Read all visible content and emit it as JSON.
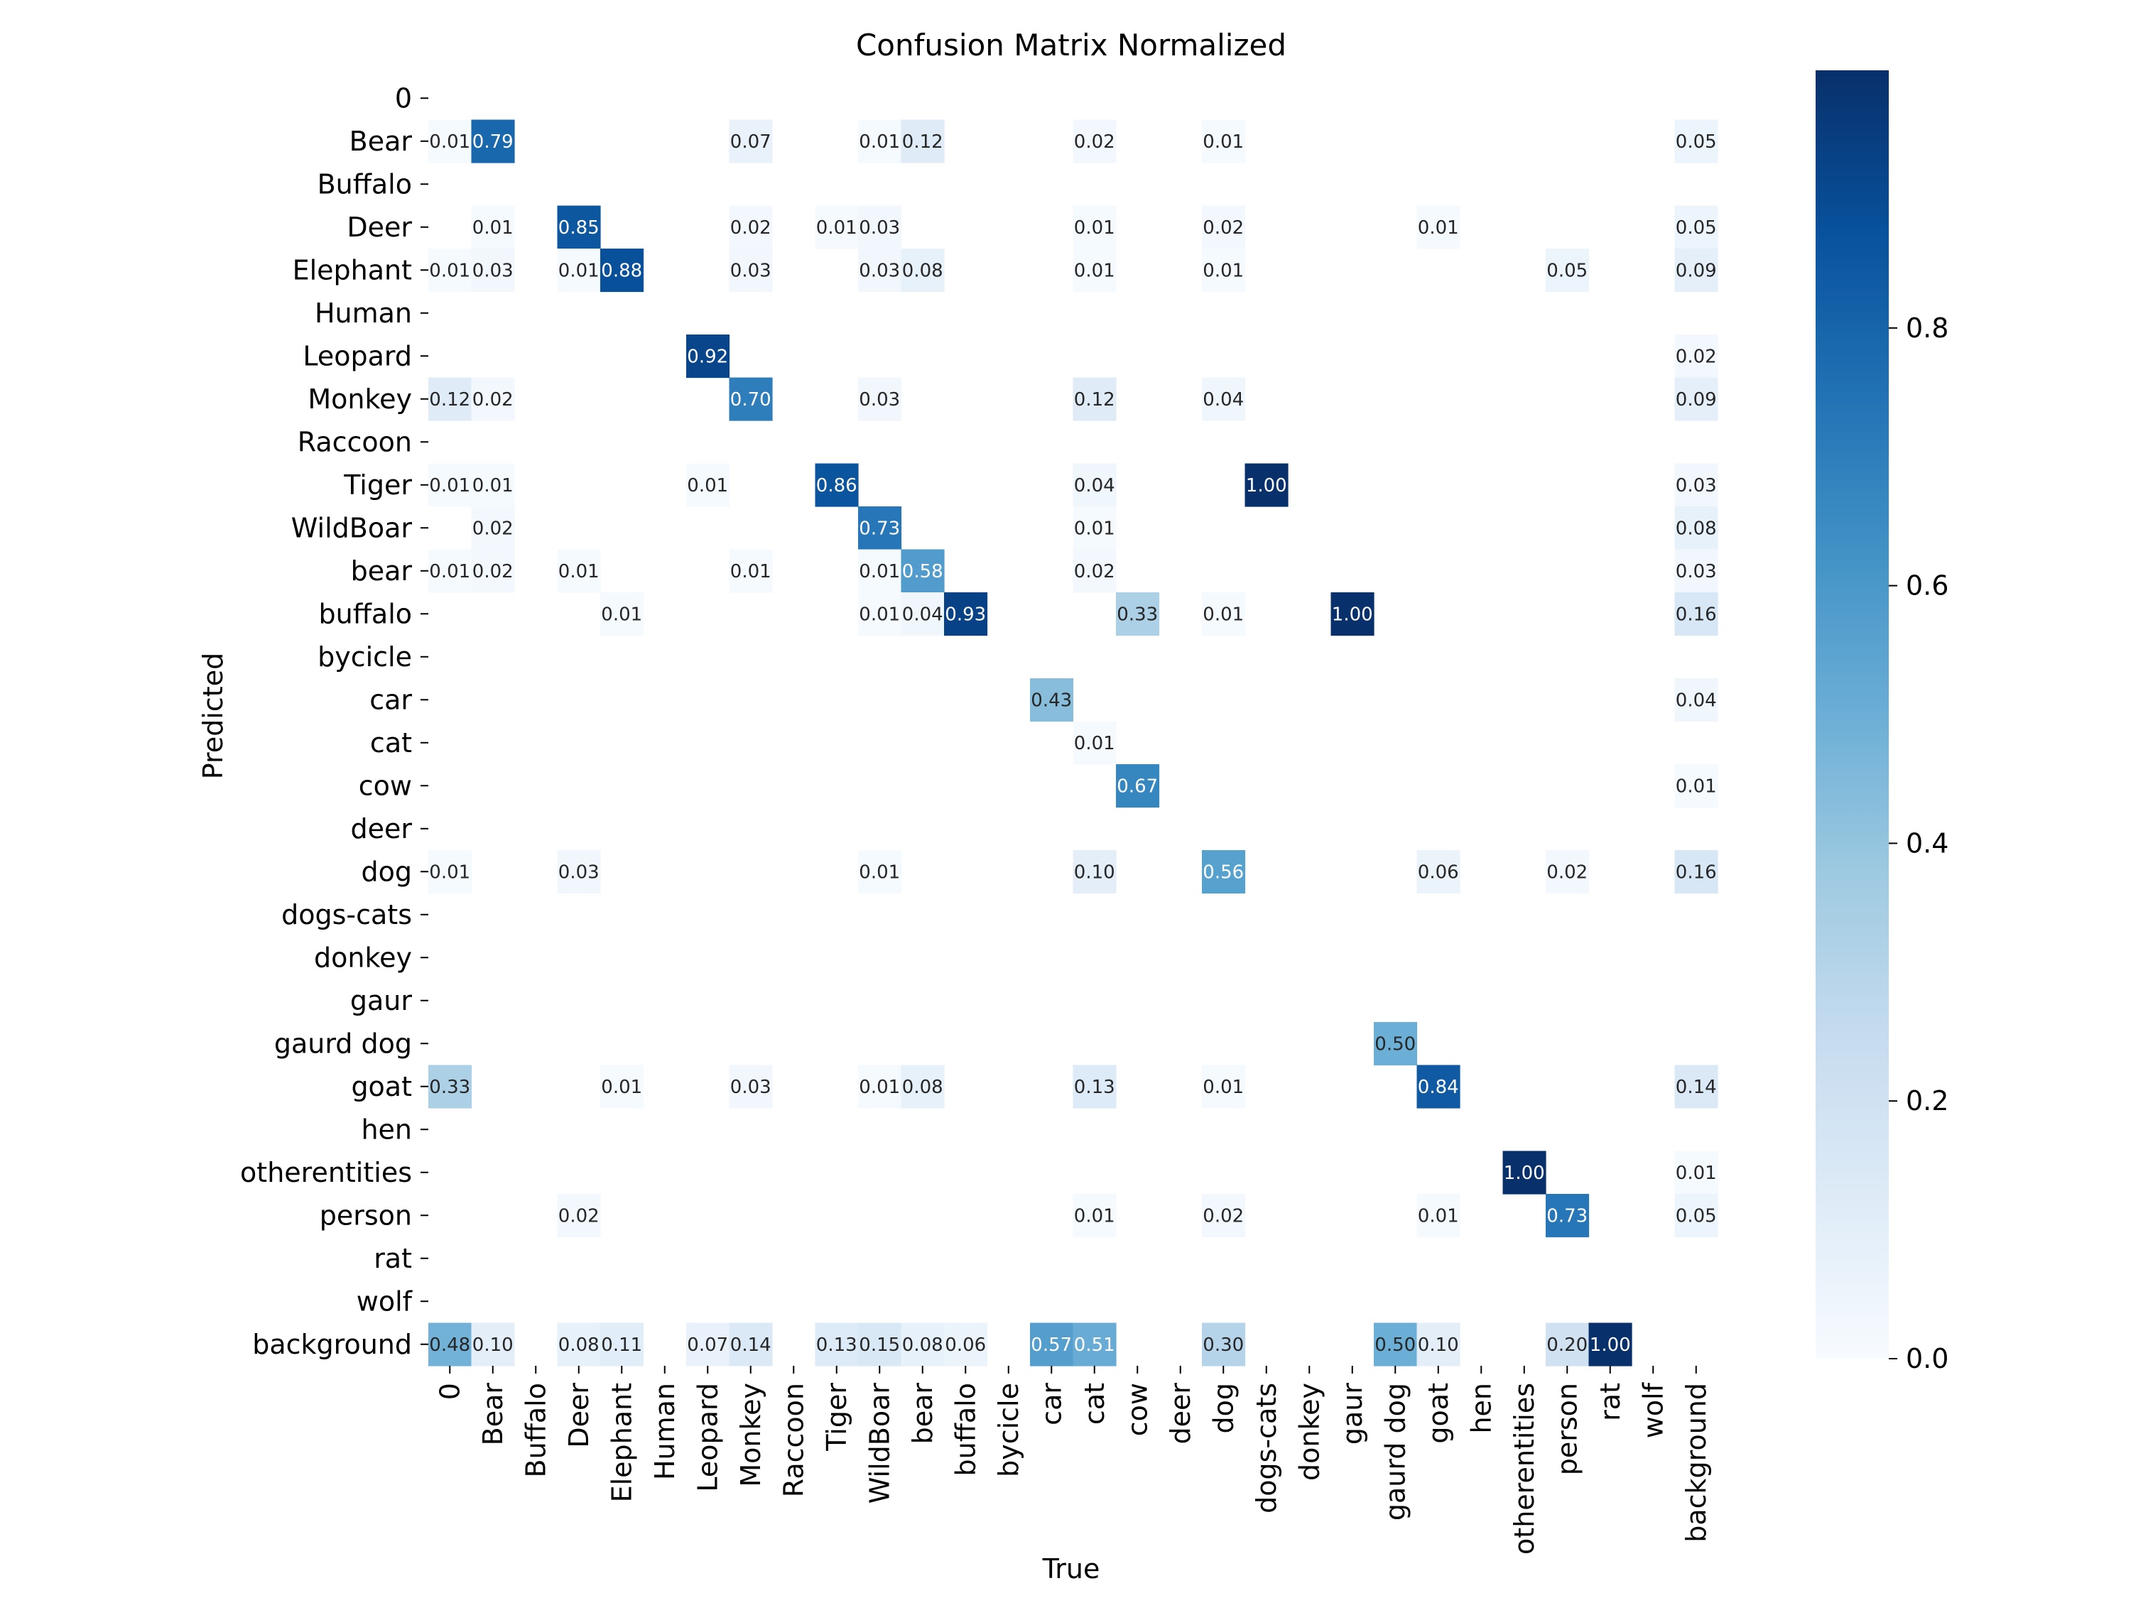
{
  "chart_data": {
    "type": "heatmap",
    "title": "Confusion Matrix Normalized",
    "xlabel": "True",
    "ylabel": "Predicted",
    "labels": [
      "0",
      "Bear",
      "Buffalo",
      "Deer",
      "Elephant",
      "Human",
      "Leopard",
      "Monkey",
      "Raccoon",
      "Tiger",
      "WildBoar",
      "bear",
      "buffalo",
      "bycicle",
      "car",
      "cat",
      "cow",
      "deer",
      "dog",
      "dogs-cats",
      "donkey",
      "gaur",
      "gaurd dog",
      "goat",
      "hen",
      "otherentities",
      "person",
      "rat",
      "wolf",
      "background"
    ],
    "colorbar": {
      "min": 0.0,
      "max": 1.0,
      "ticks": [
        "0.0",
        "0.2",
        "0.4",
        "0.6",
        "0.8"
      ],
      "tick_values": [
        0,
        0.2,
        0.4,
        0.6,
        0.8
      ]
    },
    "colormap": [
      "#f7fbff",
      "#deebf7",
      "#c6dbef",
      "#9ecae1",
      "#6baed6",
      "#4292c6",
      "#2171b5",
      "#08519c",
      "#08306b"
    ],
    "cells": [
      {
        "row": 1,
        "col": 0,
        "value": 0.01,
        "label": "0.01"
      },
      {
        "row": 1,
        "col": 1,
        "value": 0.79,
        "label": "0.79"
      },
      {
        "row": 1,
        "col": 7,
        "value": 0.07,
        "label": "0.07"
      },
      {
        "row": 1,
        "col": 10,
        "value": 0.01,
        "label": "0.01"
      },
      {
        "row": 1,
        "col": 11,
        "value": 0.12,
        "label": "0.12"
      },
      {
        "row": 1,
        "col": 15,
        "value": 0.02,
        "label": "0.02"
      },
      {
        "row": 1,
        "col": 18,
        "value": 0.01,
        "label": "0.01"
      },
      {
        "row": 1,
        "col": 29,
        "value": 0.05,
        "label": "0.05"
      },
      {
        "row": 3,
        "col": 1,
        "value": 0.01,
        "label": "0.01"
      },
      {
        "row": 3,
        "col": 3,
        "value": 0.85,
        "label": "0.85"
      },
      {
        "row": 3,
        "col": 7,
        "value": 0.02,
        "label": "0.02"
      },
      {
        "row": 3,
        "col": 9,
        "value": 0.01,
        "label": "0.01"
      },
      {
        "row": 3,
        "col": 10,
        "value": 0.03,
        "label": "0.03"
      },
      {
        "row": 3,
        "col": 15,
        "value": 0.01,
        "label": "0.01"
      },
      {
        "row": 3,
        "col": 18,
        "value": 0.02,
        "label": "0.02"
      },
      {
        "row": 3,
        "col": 23,
        "value": 0.01,
        "label": "0.01"
      },
      {
        "row": 3,
        "col": 29,
        "value": 0.05,
        "label": "0.05"
      },
      {
        "row": 4,
        "col": 0,
        "value": 0.01,
        "label": "0.01"
      },
      {
        "row": 4,
        "col": 1,
        "value": 0.03,
        "label": "0.03"
      },
      {
        "row": 4,
        "col": 3,
        "value": 0.01,
        "label": "0.01"
      },
      {
        "row": 4,
        "col": 4,
        "value": 0.88,
        "label": "0.88"
      },
      {
        "row": 4,
        "col": 7,
        "value": 0.03,
        "label": "0.03"
      },
      {
        "row": 4,
        "col": 10,
        "value": 0.03,
        "label": "0.03"
      },
      {
        "row": 4,
        "col": 11,
        "value": 0.08,
        "label": "0.08"
      },
      {
        "row": 4,
        "col": 15,
        "value": 0.01,
        "label": "0.01"
      },
      {
        "row": 4,
        "col": 18,
        "value": 0.01,
        "label": "0.01"
      },
      {
        "row": 4,
        "col": 26,
        "value": 0.05,
        "label": "0.05"
      },
      {
        "row": 4,
        "col": 29,
        "value": 0.09,
        "label": "0.09"
      },
      {
        "row": 6,
        "col": 6,
        "value": 0.92,
        "label": "0.92"
      },
      {
        "row": 6,
        "col": 29,
        "value": 0.02,
        "label": "0.02"
      },
      {
        "row": 7,
        "col": 0,
        "value": 0.12,
        "label": "0.12"
      },
      {
        "row": 7,
        "col": 1,
        "value": 0.02,
        "label": "0.02"
      },
      {
        "row": 7,
        "col": 7,
        "value": 0.7,
        "label": "0.70"
      },
      {
        "row": 7,
        "col": 10,
        "value": 0.03,
        "label": "0.03"
      },
      {
        "row": 7,
        "col": 15,
        "value": 0.12,
        "label": "0.12"
      },
      {
        "row": 7,
        "col": 18,
        "value": 0.04,
        "label": "0.04"
      },
      {
        "row": 7,
        "col": 29,
        "value": 0.09,
        "label": "0.09"
      },
      {
        "row": 9,
        "col": 0,
        "value": 0.01,
        "label": "0.01"
      },
      {
        "row": 9,
        "col": 1,
        "value": 0.01,
        "label": "0.01"
      },
      {
        "row": 9,
        "col": 6,
        "value": 0.01,
        "label": "0.01"
      },
      {
        "row": 9,
        "col": 9,
        "value": 0.86,
        "label": "0.86"
      },
      {
        "row": 9,
        "col": 15,
        "value": 0.04,
        "label": "0.04"
      },
      {
        "row": 9,
        "col": 19,
        "value": 1.0,
        "label": "1.00"
      },
      {
        "row": 9,
        "col": 29,
        "value": 0.03,
        "label": "0.03"
      },
      {
        "row": 10,
        "col": 1,
        "value": 0.02,
        "label": "0.02"
      },
      {
        "row": 10,
        "col": 10,
        "value": 0.73,
        "label": "0.73"
      },
      {
        "row": 10,
        "col": 15,
        "value": 0.01,
        "label": "0.01"
      },
      {
        "row": 10,
        "col": 29,
        "value": 0.08,
        "label": "0.08"
      },
      {
        "row": 11,
        "col": 0,
        "value": 0.01,
        "label": "0.01"
      },
      {
        "row": 11,
        "col": 1,
        "value": 0.02,
        "label": "0.02"
      },
      {
        "row": 11,
        "col": 3,
        "value": 0.01,
        "label": "0.01"
      },
      {
        "row": 11,
        "col": 7,
        "value": 0.01,
        "label": "0.01"
      },
      {
        "row": 11,
        "col": 10,
        "value": 0.01,
        "label": "0.01"
      },
      {
        "row": 11,
        "col": 11,
        "value": 0.58,
        "label": "0.58"
      },
      {
        "row": 11,
        "col": 15,
        "value": 0.02,
        "label": "0.02"
      },
      {
        "row": 11,
        "col": 29,
        "value": 0.03,
        "label": "0.03"
      },
      {
        "row": 12,
        "col": 4,
        "value": 0.01,
        "label": "0.01"
      },
      {
        "row": 12,
        "col": 10,
        "value": 0.01,
        "label": "0.01"
      },
      {
        "row": 12,
        "col": 11,
        "value": 0.04,
        "label": "0.04"
      },
      {
        "row": 12,
        "col": 12,
        "value": 0.93,
        "label": "0.93"
      },
      {
        "row": 12,
        "col": 16,
        "value": 0.33,
        "label": "0.33"
      },
      {
        "row": 12,
        "col": 18,
        "value": 0.01,
        "label": "0.01"
      },
      {
        "row": 12,
        "col": 21,
        "value": 1.0,
        "label": "1.00"
      },
      {
        "row": 12,
        "col": 29,
        "value": 0.16,
        "label": "0.16"
      },
      {
        "row": 14,
        "col": 14,
        "value": 0.43,
        "label": "0.43"
      },
      {
        "row": 14,
        "col": 29,
        "value": 0.04,
        "label": "0.04"
      },
      {
        "row": 15,
        "col": 15,
        "value": 0.01,
        "label": "0.01"
      },
      {
        "row": 16,
        "col": 16,
        "value": 0.67,
        "label": "0.67"
      },
      {
        "row": 16,
        "col": 29,
        "value": 0.01,
        "label": "0.01"
      },
      {
        "row": 18,
        "col": 0,
        "value": 0.01,
        "label": "0.01"
      },
      {
        "row": 18,
        "col": 3,
        "value": 0.03,
        "label": "0.03"
      },
      {
        "row": 18,
        "col": 10,
        "value": 0.01,
        "label": "0.01"
      },
      {
        "row": 18,
        "col": 15,
        "value": 0.1,
        "label": "0.10"
      },
      {
        "row": 18,
        "col": 18,
        "value": 0.56,
        "label": "0.56"
      },
      {
        "row": 18,
        "col": 23,
        "value": 0.06,
        "label": "0.06"
      },
      {
        "row": 18,
        "col": 26,
        "value": 0.02,
        "label": "0.02"
      },
      {
        "row": 18,
        "col": 29,
        "value": 0.16,
        "label": "0.16"
      },
      {
        "row": 22,
        "col": 22,
        "value": 0.5,
        "label": "0.50"
      },
      {
        "row": 23,
        "col": 0,
        "value": 0.33,
        "label": "0.33"
      },
      {
        "row": 23,
        "col": 4,
        "value": 0.01,
        "label": "0.01"
      },
      {
        "row": 23,
        "col": 7,
        "value": 0.03,
        "label": "0.03"
      },
      {
        "row": 23,
        "col": 10,
        "value": 0.01,
        "label": "0.01"
      },
      {
        "row": 23,
        "col": 11,
        "value": 0.08,
        "label": "0.08"
      },
      {
        "row": 23,
        "col": 15,
        "value": 0.13,
        "label": "0.13"
      },
      {
        "row": 23,
        "col": 18,
        "value": 0.01,
        "label": "0.01"
      },
      {
        "row": 23,
        "col": 23,
        "value": 0.84,
        "label": "0.84"
      },
      {
        "row": 23,
        "col": 29,
        "value": 0.14,
        "label": "0.14"
      },
      {
        "row": 25,
        "col": 25,
        "value": 1.0,
        "label": "1.00"
      },
      {
        "row": 25,
        "col": 29,
        "value": 0.01,
        "label": "0.01"
      },
      {
        "row": 26,
        "col": 3,
        "value": 0.02,
        "label": "0.02"
      },
      {
        "row": 26,
        "col": 15,
        "value": 0.01,
        "label": "0.01"
      },
      {
        "row": 26,
        "col": 18,
        "value": 0.02,
        "label": "0.02"
      },
      {
        "row": 26,
        "col": 23,
        "value": 0.01,
        "label": "0.01"
      },
      {
        "row": 26,
        "col": 26,
        "value": 0.73,
        "label": "0.73"
      },
      {
        "row": 26,
        "col": 29,
        "value": 0.05,
        "label": "0.05"
      },
      {
        "row": 29,
        "col": 0,
        "value": 0.48,
        "label": "0.48"
      },
      {
        "row": 29,
        "col": 1,
        "value": 0.1,
        "label": "0.10"
      },
      {
        "row": 29,
        "col": 3,
        "value": 0.08,
        "label": "0.08"
      },
      {
        "row": 29,
        "col": 4,
        "value": 0.11,
        "label": "0.11"
      },
      {
        "row": 29,
        "col": 6,
        "value": 0.07,
        "label": "0.07"
      },
      {
        "row": 29,
        "col": 7,
        "value": 0.14,
        "label": "0.14"
      },
      {
        "row": 29,
        "col": 9,
        "value": 0.13,
        "label": "0.13"
      },
      {
        "row": 29,
        "col": 10,
        "value": 0.15,
        "label": "0.15"
      },
      {
        "row": 29,
        "col": 11,
        "value": 0.08,
        "label": "0.08"
      },
      {
        "row": 29,
        "col": 12,
        "value": 0.06,
        "label": "0.06"
      },
      {
        "row": 29,
        "col": 14,
        "value": 0.57,
        "label": "0.57"
      },
      {
        "row": 29,
        "col": 15,
        "value": 0.51,
        "label": "0.51"
      },
      {
        "row": 29,
        "col": 18,
        "value": 0.3,
        "label": "0.30"
      },
      {
        "row": 29,
        "col": 22,
        "value": 0.5,
        "label": "0.50"
      },
      {
        "row": 29,
        "col": 23,
        "value": 0.1,
        "label": "0.10"
      },
      {
        "row": 29,
        "col": 26,
        "value": 0.2,
        "label": "0.20"
      },
      {
        "row": 29,
        "col": 27,
        "value": 1.0,
        "label": "1.00"
      }
    ]
  }
}
